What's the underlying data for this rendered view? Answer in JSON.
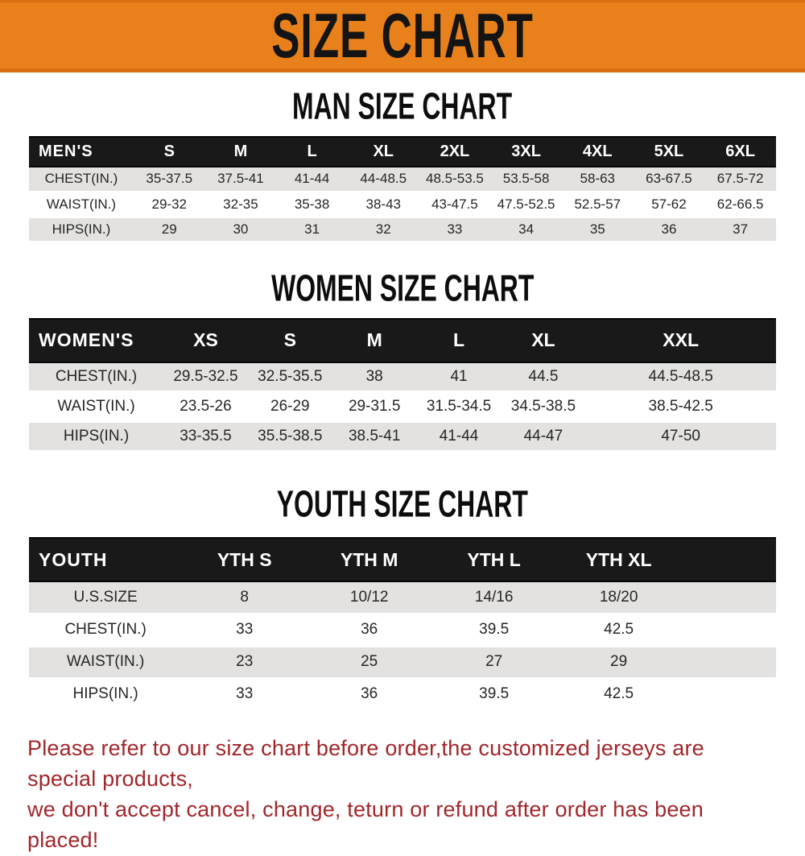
{
  "banner": {
    "title": "SIZE CHART"
  },
  "colors": {
    "banner_orange": "#e8811b",
    "banner_edge": "#d96f12",
    "header_black": "#191919",
    "row_gray": "#e3e2e0",
    "note_red": "#a2262a"
  },
  "sections": [
    {
      "key": "mens",
      "title": "MAN SIZE CHART",
      "header_label": "MEN'S",
      "columns": [
        "S",
        "M",
        "L",
        "XL",
        "2XL",
        "3XL",
        "4XL",
        "5XL",
        "6XL"
      ],
      "rows": [
        {
          "label": "CHEST(IN.)",
          "values": [
            "35-37.5",
            "37.5-41",
            "41-44",
            "44-48.5",
            "48.5-53.5",
            "53.5-58",
            "58-63",
            "63-67.5",
            "67.5-72"
          ]
        },
        {
          "label": "WAIST(IN.)",
          "values": [
            "29-32",
            "32-35",
            "35-38",
            "38-43",
            "43-47.5",
            "47.5-52.5",
            "52.5-57",
            "57-62",
            "62-66.5"
          ]
        },
        {
          "label": "HIPS(IN.)",
          "values": [
            "29",
            "30",
            "31",
            "32",
            "33",
            "34",
            "35",
            "36",
            "37"
          ]
        }
      ]
    },
    {
      "key": "womens",
      "title": "WOMEN SIZE CHART",
      "header_label": "WOMEN'S",
      "columns": [
        "XS",
        "S",
        "M",
        "L",
        "XL",
        "XXL"
      ],
      "rows": [
        {
          "label": "CHEST(IN.)",
          "values": [
            "29.5-32.5",
            "32.5-35.5",
            "38",
            "41",
            "44.5",
            "44.5-48.5"
          ]
        },
        {
          "label": "WAIST(IN.)",
          "values": [
            "23.5-26",
            "26-29",
            "29-31.5",
            "31.5-34.5",
            "34.5-38.5",
            "38.5-42.5"
          ]
        },
        {
          "label": "HIPS(IN.)",
          "values": [
            "33-35.5",
            "35.5-38.5",
            "38.5-41",
            "41-44",
            "44-47",
            "47-50"
          ]
        }
      ]
    },
    {
      "key": "youth",
      "title": "YOUTH SIZE CHART",
      "header_label": "YOUTH",
      "columns": [
        "YTH S",
        "YTH M",
        "YTH L",
        "YTH XL"
      ],
      "rows": [
        {
          "label": "U.S.SIZE",
          "values": [
            "8",
            "10/12",
            "14/16",
            "18/20"
          ]
        },
        {
          "label": "CHEST(IN.)",
          "values": [
            "33",
            "36",
            "39.5",
            "42.5"
          ]
        },
        {
          "label": "WAIST(IN.)",
          "values": [
            "23",
            "25",
            "27",
            "29"
          ]
        },
        {
          "label": "HIPS(IN.)",
          "values": [
            "33",
            "36",
            "39.5",
            "42.5"
          ]
        }
      ]
    }
  ],
  "note": {
    "line1": "Please refer to our size chart before order,the customized jerseys are special products,",
    "line2": "we don't accept cancel, change, teturn or refund after order has been placed!"
  }
}
